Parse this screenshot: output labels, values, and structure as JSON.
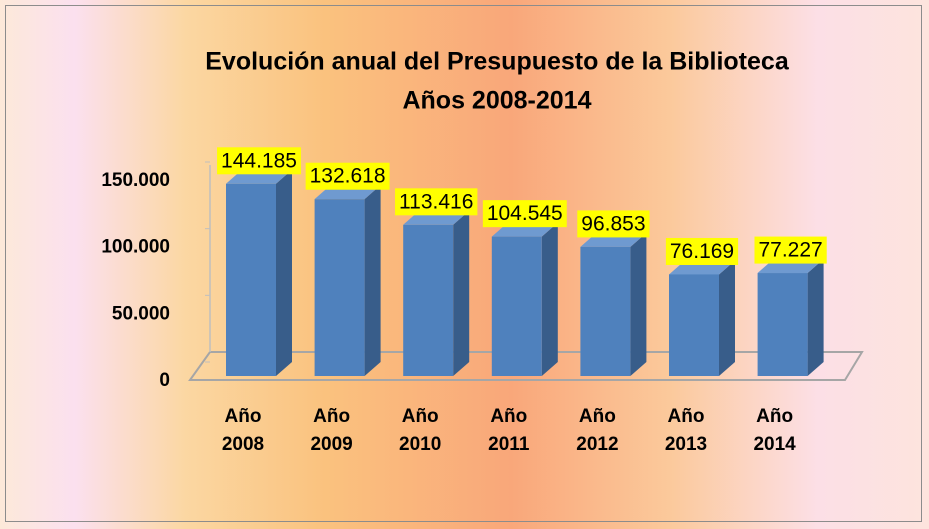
{
  "chart_data": {
    "type": "bar3d",
    "title": "Evolución anual del Presupuesto de la Biblioteca",
    "subtitle": "Años 2008-2014",
    "categories": [
      "Año 2008",
      "Año 2009",
      "Año 2010",
      "Año 2011",
      "Año 2012",
      "Año 2013",
      "Año 2014"
    ],
    "values": [
      144185,
      132618,
      113416,
      104545,
      96853,
      76169,
      77227
    ],
    "value_labels": [
      "144.185",
      "132.618",
      "113.416",
      "104.545",
      "96.853",
      "76.169",
      "77.227"
    ],
    "color": "#4f81bd",
    "label_background": "#ffff00",
    "ylim": [
      0,
      150000
    ],
    "yticks": [
      0,
      {
        "value": 50000,
        "label": "50.000"
      },
      {
        "value": 100000,
        "label": "100.000"
      },
      {
        "value": 150000,
        "label": "150.000"
      }
    ],
    "grid": false
  }
}
